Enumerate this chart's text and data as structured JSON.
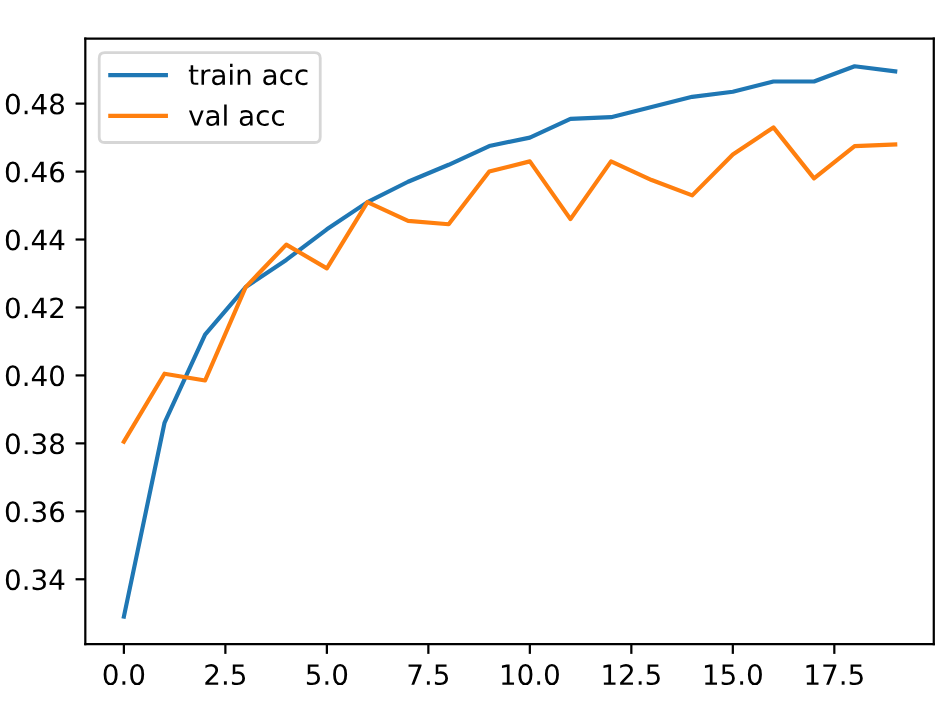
{
  "chart_data": {
    "type": "line",
    "x": [
      0,
      1,
      2,
      3,
      4,
      5,
      6,
      7,
      8,
      9,
      10,
      11,
      12,
      13,
      14,
      15,
      16,
      17,
      18,
      19
    ],
    "series": [
      {
        "name": "train acc",
        "color": "#1f77b4",
        "values": [
          0.329,
          0.386,
          0.412,
          0.426,
          0.434,
          0.443,
          0.451,
          0.457,
          0.462,
          0.4675,
          0.47,
          0.4755,
          0.476,
          0.479,
          0.482,
          0.4835,
          0.4865,
          0.4865,
          0.491,
          0.4895
        ]
      },
      {
        "name": "val acc",
        "color": "#ff7f0e",
        "values": [
          0.3805,
          0.4005,
          0.3985,
          0.426,
          0.4385,
          0.4315,
          0.451,
          0.4455,
          0.4445,
          0.46,
          0.463,
          0.446,
          0.463,
          0.4575,
          0.453,
          0.465,
          0.473,
          0.458,
          0.4675,
          0.468
        ]
      }
    ],
    "xlim": [
      -0.95,
      19.95
    ],
    "ylim": [
      0.3209,
      0.4991
    ],
    "xticks": [
      {
        "value": 0,
        "label": "0.0"
      },
      {
        "value": 2.5,
        "label": "2.5"
      },
      {
        "value": 5,
        "label": "5.0"
      },
      {
        "value": 7.5,
        "label": "7.5"
      },
      {
        "value": 10,
        "label": "10.0"
      },
      {
        "value": 12.5,
        "label": "12.5"
      },
      {
        "value": 15,
        "label": "15.0"
      },
      {
        "value": 17.5,
        "label": "17.5"
      }
    ],
    "yticks": [
      {
        "value": 0.34,
        "label": "0.34"
      },
      {
        "value": 0.36,
        "label": "0.36"
      },
      {
        "value": 0.38,
        "label": "0.38"
      },
      {
        "value": 0.4,
        "label": "0.40"
      },
      {
        "value": 0.42,
        "label": "0.42"
      },
      {
        "value": 0.44,
        "label": "0.44"
      },
      {
        "value": 0.46,
        "label": "0.46"
      },
      {
        "value": 0.48,
        "label": "0.48"
      }
    ],
    "legend": "top left",
    "grid": false,
    "marker": "none",
    "line_style": "solid"
  }
}
